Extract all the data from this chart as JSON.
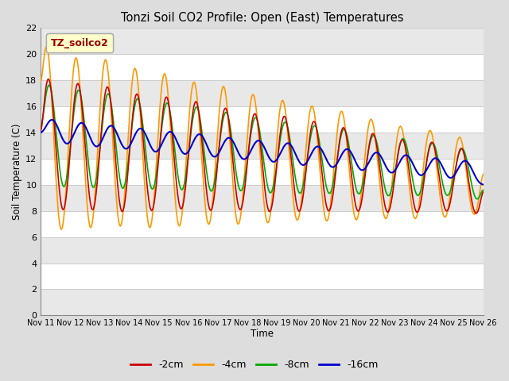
{
  "title": "Tonzi Soil CO2 Profile: Open (East) Temperatures",
  "xlabel": "Time",
  "ylabel": "Soil Temperature (C)",
  "ylim": [
    0,
    22
  ],
  "yticks": [
    0,
    2,
    4,
    6,
    8,
    10,
    12,
    14,
    16,
    18,
    20,
    22
  ],
  "x_labels": [
    "Nov 11",
    "Nov 12",
    "Nov 13",
    "Nov 14",
    "Nov 15",
    "Nov 16",
    "Nov 17",
    "Nov 18",
    "Nov 19",
    "Nov 20",
    "Nov 21",
    "Nov 22",
    "Nov 23",
    "Nov 24",
    "Nov 25",
    "Nov 26"
  ],
  "legend_label": "TZ_soilco2",
  "series_labels": [
    "-2cm",
    "-4cm",
    "-8cm",
    "-16cm"
  ],
  "series_colors": [
    "#cc0000",
    "#ff9900",
    "#00aa00",
    "#0000cc"
  ],
  "bg_color": "#dddddd",
  "plot_bg_white": "#ffffff",
  "plot_bg_gray": "#e8e8e8",
  "n_points": 720,
  "t_days": 15
}
